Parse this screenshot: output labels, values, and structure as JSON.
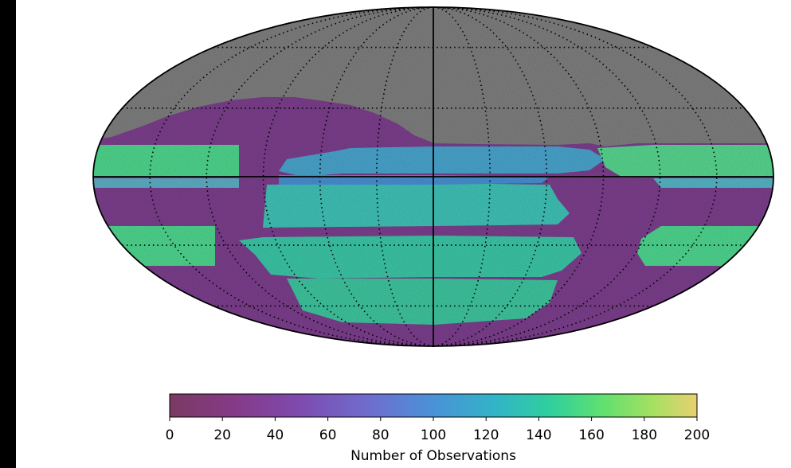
{
  "chart_data": {
    "type": "heatmap",
    "projection": "mollweide",
    "title": "",
    "colormap": "viridis",
    "no_data_color": "#808080",
    "colorbar": {
      "label": "Number of Observations",
      "range": [
        0,
        200
      ],
      "ticks": [
        0,
        20,
        40,
        60,
        80,
        100,
        120,
        140,
        160,
        180,
        200
      ],
      "orientation": "horizontal"
    },
    "graticule": {
      "longitude_spacing_deg": 30,
      "latitude_spacing_deg": 30,
      "style": "dotted"
    },
    "approx_bands": [
      {
        "lat_range": [
          0,
          10
        ],
        "outer_value": 140,
        "inner_value": 90
      },
      {
        "lat_range": [
          -20,
          -10
        ],
        "outer_value": 140,
        "inner_value": 120
      },
      {
        "lat_range": [
          -45,
          -30
        ],
        "outer_value": 140,
        "inner_value": 130
      }
    ],
    "baseline_value": 30
  }
}
